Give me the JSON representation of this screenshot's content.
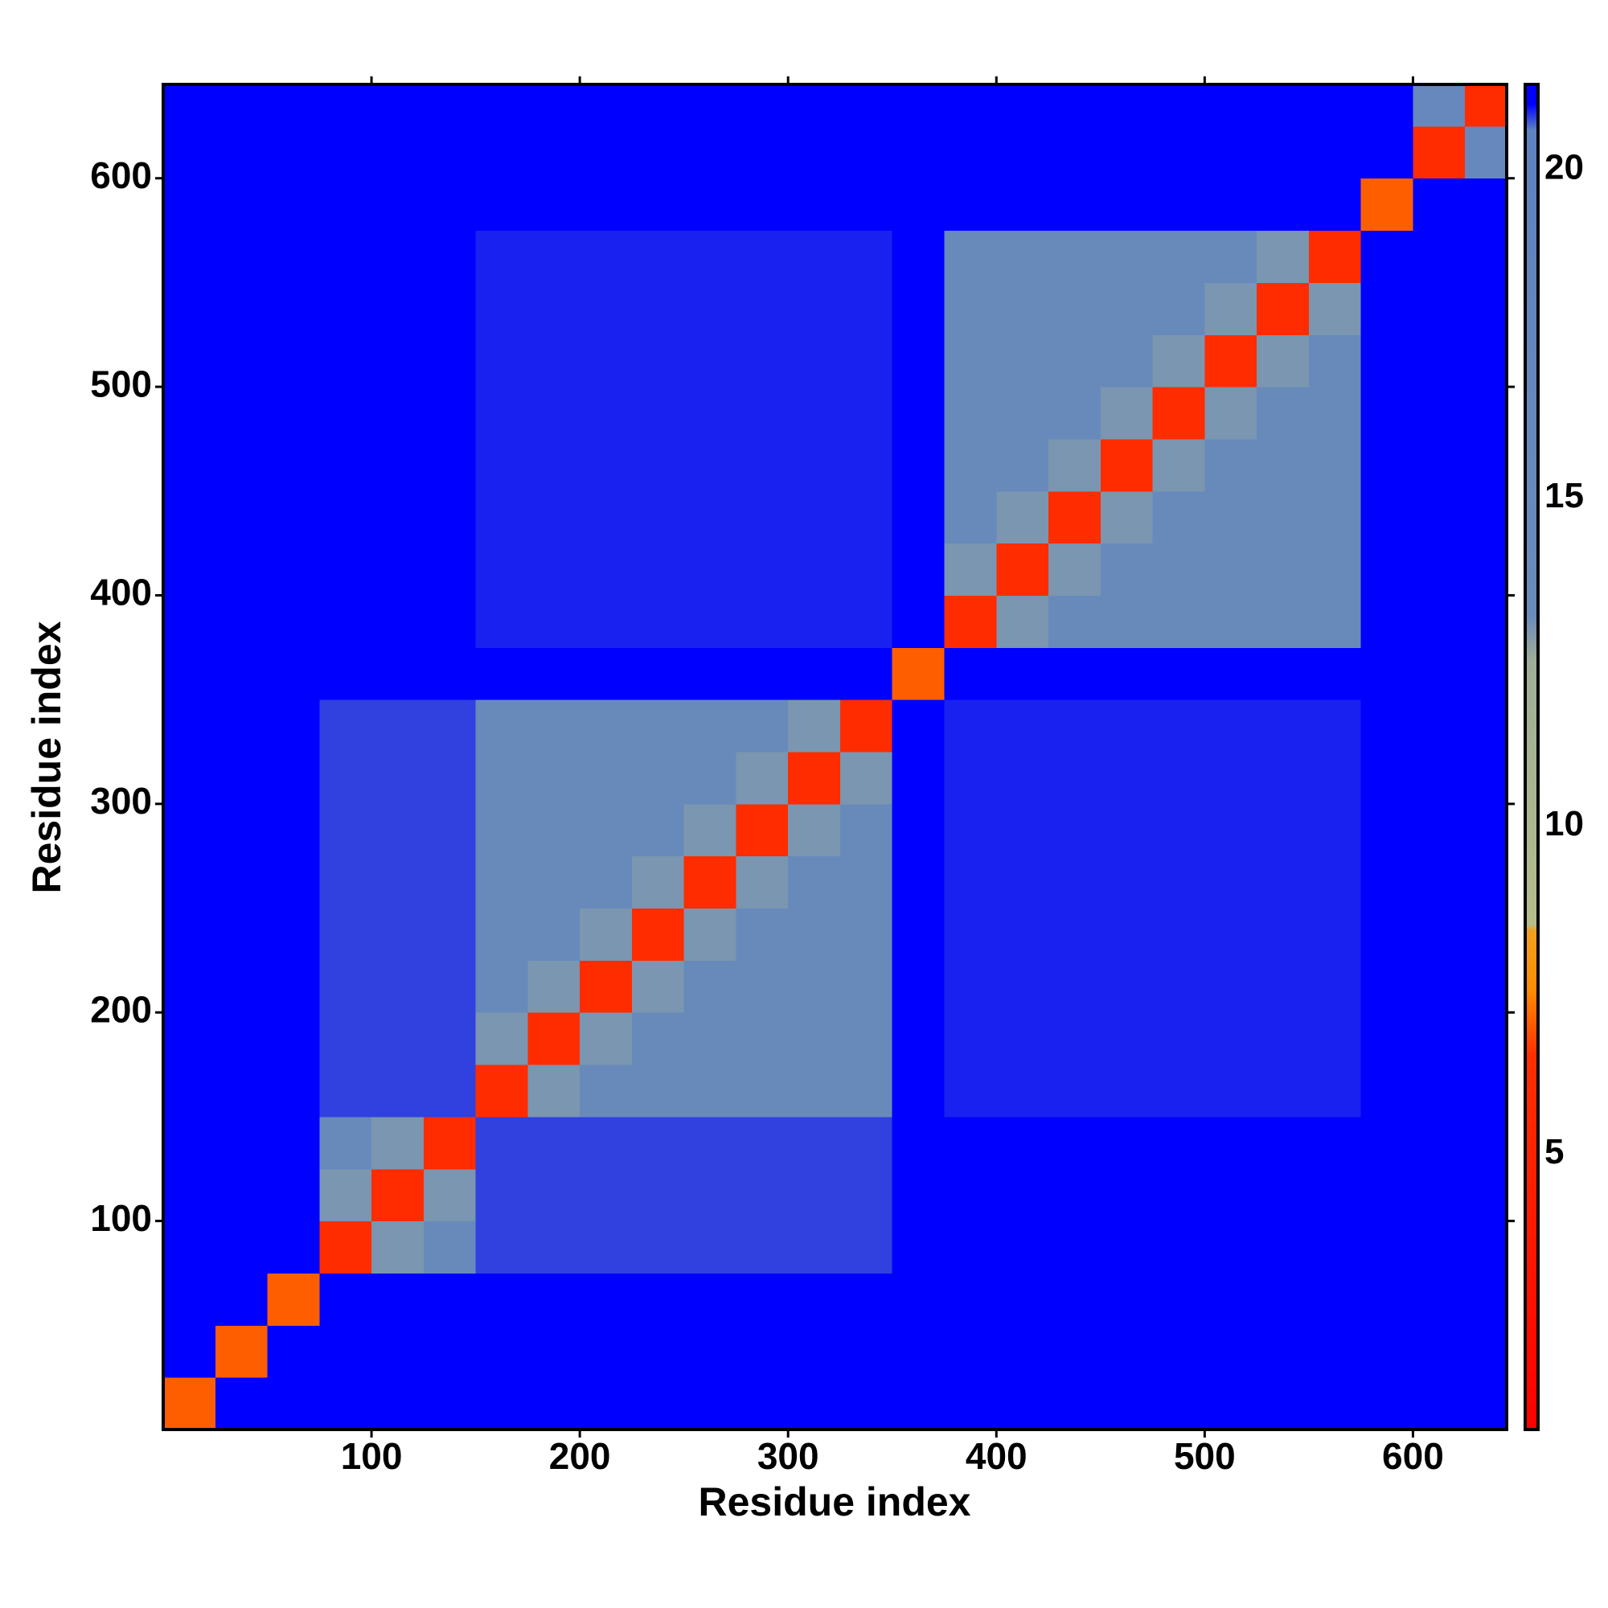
{
  "chart_data": {
    "type": "heatmap",
    "x_label": "Residue index",
    "y_label": "Residue index",
    "bins": [
      0,
      25,
      50,
      75,
      100,
      125,
      150,
      175,
      200,
      225,
      250,
      275,
      300,
      325,
      350,
      375,
      400,
      425,
      450,
      475,
      500,
      525,
      550,
      575,
      600,
      625,
      645
    ],
    "xlim": [
      0,
      645
    ],
    "ylim": [
      0,
      645
    ],
    "xticks": [
      100,
      200,
      300,
      400,
      500,
      600
    ],
    "yticks": [
      100,
      200,
      300,
      400,
      500,
      600
    ],
    "zlim": [
      0.8,
      21.3
    ],
    "zticks": [
      5,
      10,
      15,
      20
    ],
    "colorscale": [
      {
        "value": 0.8,
        "color": "#ff0000"
      },
      {
        "value": 6.5,
        "color": "#ff3000"
      },
      {
        "value": 7.5,
        "color": "#ff8c00"
      },
      {
        "value": 8.4,
        "color": "#f0a020"
      },
      {
        "value": 8.5,
        "color": "#b5bd8c"
      },
      {
        "value": 12.5,
        "color": "#9fae97"
      },
      {
        "value": 13.2,
        "color": "#6b8cba"
      },
      {
        "value": 20.6,
        "color": "#5f82c0"
      },
      {
        "value": 21.0,
        "color": "#0000ff"
      },
      {
        "value": 21.3,
        "color": "#0000ff"
      }
    ],
    "values": [
      [
        7,
        21,
        21,
        21,
        21,
        21,
        21,
        21,
        21,
        21,
        21,
        21,
        21,
        21,
        21,
        21,
        21,
        21,
        21,
        21,
        21,
        21,
        21,
        21,
        21,
        21
      ],
      [
        21,
        7,
        21,
        21,
        21,
        21,
        21,
        21,
        21,
        21,
        21,
        21,
        21,
        21,
        21,
        21,
        21,
        21,
        21,
        21,
        21,
        21,
        21,
        21,
        21,
        21
      ],
      [
        21,
        21,
        7,
        21,
        21,
        21,
        21,
        21,
        21,
        21,
        21,
        21,
        21,
        21,
        21,
        21,
        21,
        21,
        21,
        21,
        21,
        21,
        21,
        21,
        21,
        21
      ],
      [
        21,
        21,
        21,
        6,
        13,
        15,
        20.8,
        20.8,
        20.8,
        20.8,
        20.8,
        20.8,
        20.8,
        20.8,
        21,
        21,
        21,
        21,
        21,
        21,
        21,
        21,
        21,
        21,
        21,
        21
      ],
      [
        21,
        21,
        21,
        13,
        6,
        13,
        20.8,
        20.8,
        20.8,
        20.8,
        20.8,
        20.8,
        20.8,
        20.8,
        21,
        21,
        21,
        21,
        21,
        21,
        21,
        21,
        21,
        21,
        21,
        21
      ],
      [
        21,
        21,
        21,
        15,
        13,
        6,
        20.8,
        20.8,
        20.8,
        20.8,
        20.8,
        20.8,
        20.8,
        20.8,
        21,
        21,
        21,
        21,
        21,
        21,
        21,
        21,
        21,
        21,
        21,
        21
      ],
      [
        21,
        21,
        21,
        20.8,
        20.8,
        20.8,
        6,
        13,
        15,
        15,
        15,
        15,
        15,
        15,
        21,
        20.9,
        20.9,
        20.9,
        20.9,
        20.9,
        20.9,
        20.9,
        20.9,
        21,
        21,
        21
      ],
      [
        21,
        21,
        21,
        20.8,
        20.8,
        20.8,
        13,
        6,
        13,
        15,
        15,
        15,
        15,
        15,
        21,
        20.9,
        20.9,
        20.9,
        20.9,
        20.9,
        20.9,
        20.9,
        20.9,
        21,
        21,
        21
      ],
      [
        21,
        21,
        21,
        20.8,
        20.8,
        20.8,
        15,
        13,
        6,
        13,
        15,
        15,
        15,
        15,
        21,
        20.9,
        20.9,
        20.9,
        20.9,
        20.9,
        20.9,
        20.9,
        20.9,
        21,
        21,
        21
      ],
      [
        21,
        21,
        21,
        20.8,
        20.8,
        20.8,
        15,
        15,
        13,
        6,
        13,
        15,
        15,
        15,
        21,
        20.9,
        20.9,
        20.9,
        20.9,
        20.9,
        20.9,
        20.9,
        20.9,
        21,
        21,
        21
      ],
      [
        21,
        21,
        21,
        20.8,
        20.8,
        20.8,
        15,
        15,
        15,
        13,
        6,
        13,
        15,
        15,
        21,
        20.9,
        20.9,
        20.9,
        20.9,
        20.9,
        20.9,
        20.9,
        20.9,
        21,
        21,
        21
      ],
      [
        21,
        21,
        21,
        20.8,
        20.8,
        20.8,
        15,
        15,
        15,
        15,
        13,
        6,
        13,
        15,
        21,
        20.9,
        20.9,
        20.9,
        20.9,
        20.9,
        20.9,
        20.9,
        20.9,
        21,
        21,
        21
      ],
      [
        21,
        21,
        21,
        20.8,
        20.8,
        20.8,
        15,
        15,
        15,
        15,
        15,
        13,
        6,
        13,
        21,
        20.9,
        20.9,
        20.9,
        20.9,
        20.9,
        20.9,
        20.9,
        20.9,
        21,
        21,
        21
      ],
      [
        21,
        21,
        21,
        20.8,
        20.8,
        20.8,
        15,
        15,
        15,
        15,
        15,
        15,
        13,
        6,
        21,
        20.9,
        20.9,
        20.9,
        20.9,
        20.9,
        20.9,
        20.9,
        20.9,
        21,
        21,
        21
      ],
      [
        21,
        21,
        21,
        21,
        21,
        21,
        21,
        21,
        21,
        21,
        21,
        21,
        21,
        21,
        7,
        21,
        21,
        21,
        21,
        21,
        21,
        21,
        21,
        21,
        21,
        21
      ],
      [
        21,
        21,
        21,
        21,
        21,
        21,
        20.9,
        20.9,
        20.9,
        20.9,
        20.9,
        20.9,
        20.9,
        20.9,
        21,
        6,
        13,
        15,
        15,
        15,
        15,
        15,
        15,
        21,
        21,
        21
      ],
      [
        21,
        21,
        21,
        21,
        21,
        21,
        20.9,
        20.9,
        20.9,
        20.9,
        20.9,
        20.9,
        20.9,
        20.9,
        21,
        13,
        6,
        13,
        15,
        15,
        15,
        15,
        15,
        21,
        21,
        21
      ],
      [
        21,
        21,
        21,
        21,
        21,
        21,
        20.9,
        20.9,
        20.9,
        20.9,
        20.9,
        20.9,
        20.9,
        20.9,
        21,
        15,
        13,
        6,
        13,
        15,
        15,
        15,
        15,
        21,
        21,
        21
      ],
      [
        21,
        21,
        21,
        21,
        21,
        21,
        20.9,
        20.9,
        20.9,
        20.9,
        20.9,
        20.9,
        20.9,
        20.9,
        21,
        15,
        15,
        13,
        6,
        13,
        15,
        15,
        15,
        21,
        21,
        21
      ],
      [
        21,
        21,
        21,
        21,
        21,
        21,
        20.9,
        20.9,
        20.9,
        20.9,
        20.9,
        20.9,
        20.9,
        20.9,
        21,
        15,
        15,
        15,
        13,
        6,
        13,
        15,
        15,
        21,
        21,
        21
      ],
      [
        21,
        21,
        21,
        21,
        21,
        21,
        20.9,
        20.9,
        20.9,
        20.9,
        20.9,
        20.9,
        20.9,
        20.9,
        21,
        15,
        15,
        15,
        15,
        13,
        6,
        13,
        15,
        21,
        21,
        21
      ],
      [
        21,
        21,
        21,
        21,
        21,
        21,
        20.9,
        20.9,
        20.9,
        20.9,
        20.9,
        20.9,
        20.9,
        20.9,
        21,
        15,
        15,
        15,
        15,
        15,
        13,
        6,
        13,
        21,
        21,
        21
      ],
      [
        21,
        21,
        21,
        21,
        21,
        21,
        20.9,
        20.9,
        20.9,
        20.9,
        20.9,
        20.9,
        20.9,
        20.9,
        21,
        15,
        15,
        15,
        15,
        15,
        15,
        13,
        6,
        21,
        21,
        21
      ],
      [
        21,
        21,
        21,
        21,
        21,
        21,
        21,
        21,
        21,
        21,
        21,
        21,
        21,
        21,
        21,
        21,
        21,
        21,
        21,
        21,
        21,
        21,
        21,
        7,
        21,
        21
      ],
      [
        21,
        21,
        21,
        21,
        21,
        21,
        21,
        21,
        21,
        21,
        21,
        21,
        21,
        21,
        21,
        21,
        21,
        21,
        21,
        21,
        21,
        21,
        21,
        21,
        6,
        16
      ],
      [
        21,
        21,
        21,
        21,
        21,
        21,
        21,
        21,
        21,
        21,
        21,
        21,
        21,
        21,
        21,
        21,
        21,
        21,
        21,
        21,
        21,
        21,
        21,
        21,
        16,
        6
      ]
    ]
  }
}
